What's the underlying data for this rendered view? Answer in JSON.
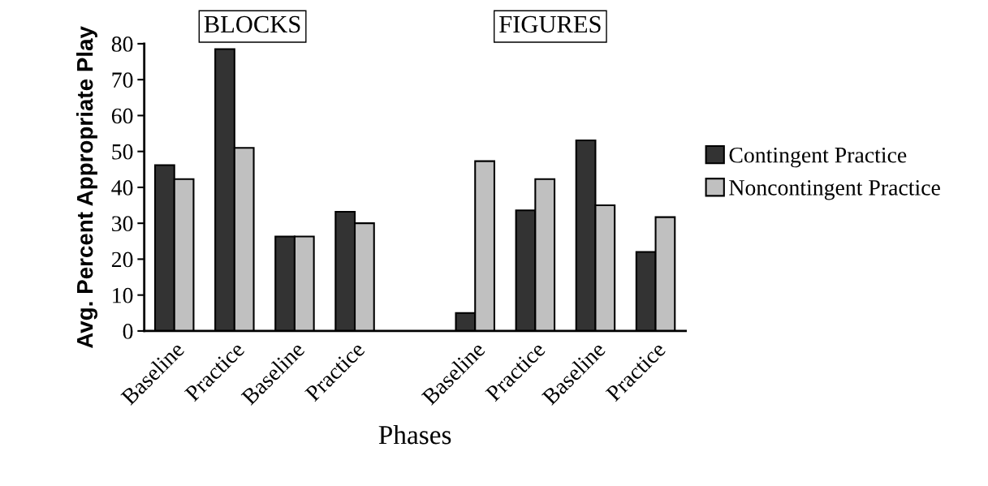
{
  "chart_data": {
    "type": "bar",
    "categories": [
      "Baseline",
      "Practice",
      "Baseline",
      "Practice",
      null,
      "Baseline",
      "Practice",
      "Baseline",
      "Practice"
    ],
    "series": [
      {
        "name": "Contingent Practice",
        "color": "#333333",
        "values": [
          46.2,
          78.5,
          26.3,
          33.2,
          null,
          5,
          33.6,
          53.1,
          22
        ]
      },
      {
        "name": "Noncontingent Practice",
        "color": "#c0c0c0",
        "values": [
          42.3,
          51,
          26.3,
          30,
          null,
          47.3,
          42.3,
          35,
          31.7
        ]
      }
    ],
    "ylabel": "Avg. Percent Appropriate Play",
    "xlabel": "Phases",
    "annotations": [
      "BLOCKS",
      "FIGURES"
    ],
    "ylim": [
      0,
      80
    ],
    "yticks": [
      0,
      10,
      20,
      30,
      40,
      50,
      60,
      70,
      80
    ],
    "grid": false,
    "legend": "right"
  }
}
